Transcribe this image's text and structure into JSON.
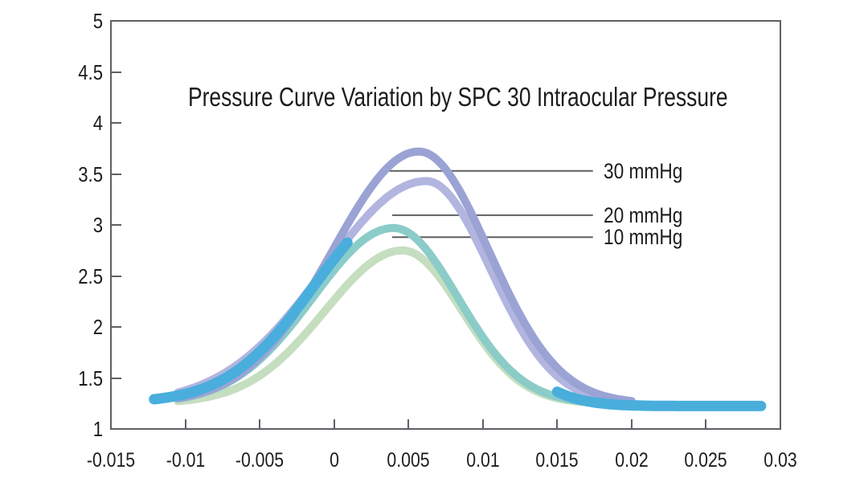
{
  "figure": {
    "background": "#ffffff",
    "frame_color": "#5d6165",
    "text_color": "#1d1d1d",
    "leader_line_color": "#5f5f5f"
  },
  "chart_data": {
    "type": "line",
    "title": "Pressure Curve Variation by SPC 30 Intraocular Pressure",
    "xlabel": "",
    "ylabel": "",
    "xlim": [
      -0.015,
      0.03
    ],
    "ylim": [
      1,
      5
    ],
    "grid": false,
    "x_ticks": [
      -0.015,
      -0.01,
      -0.005,
      0,
      0.005,
      0.01,
      0.015,
      0.02,
      0.025,
      0.03
    ],
    "x_tick_labels": [
      "-0.015",
      "-0.01",
      "-0.005",
      "0",
      "0.005",
      "0.01",
      "0.015",
      "0.02",
      "0.025",
      "0.03"
    ],
    "y_ticks": [
      5,
      4.5,
      4,
      3.5,
      3,
      2.5,
      2,
      1.5,
      1
    ],
    "y_tick_labels": [
      "5",
      "4.5",
      "4",
      "3.5",
      "3",
      "2.5",
      "2",
      "1.5",
      "1"
    ],
    "baseline_value": 1.25,
    "series": [
      {
        "name": "10 mmHg curve",
        "color": "#c5dec0",
        "stroke_width": 10,
        "base": 1.25,
        "amplitude": 1.5,
        "mu": 0.0046,
        "sigma_left": 0.0052,
        "sigma_right": 0.004,
        "x_start": -0.0105,
        "x_end": 0.0195,
        "peak": {
          "x": 0.0046,
          "y": 2.75
        }
      },
      {
        "name": "20 mmHg curve",
        "color": "#8bccc9",
        "stroke_width": 10,
        "base": 1.25,
        "amplitude": 1.72,
        "mu": 0.004,
        "sigma_left": 0.0054,
        "sigma_right": 0.0043,
        "x_start": -0.0105,
        "x_end": 0.0195,
        "peak": {
          "x": 0.004,
          "y": 2.97
        }
      },
      {
        "name": "30 mmHg secondary curve",
        "color": "#b2b5df",
        "stroke_width": 10,
        "base": 1.25,
        "amplitude": 2.18,
        "mu": 0.0062,
        "sigma_left": 0.0068,
        "sigma_right": 0.0043,
        "x_start": -0.0105,
        "x_end": 0.02,
        "peak": {
          "x": 0.0062,
          "y": 3.43
        }
      },
      {
        "name": "30 mmHg curve",
        "color": "#9aa3d4",
        "stroke_width": 10,
        "base": 1.25,
        "amplitude": 2.47,
        "mu": 0.0057,
        "sigma_left": 0.0058,
        "sigma_right": 0.0047,
        "x_start": -0.0105,
        "x_end": 0.02,
        "peak": {
          "x": 0.0057,
          "y": 3.72
        }
      },
      {
        "name": "base pressure curve (left flank)",
        "color": "#49aedc",
        "stroke_width": 13,
        "base": 1.26,
        "amplitude": 1.9,
        "mu": 0.0045,
        "sigma_left": 0.0058,
        "sigma_right": 0.0046,
        "x_start": -0.0121,
        "x_end": 0.0009,
        "peak": {
          "x": -0.0121,
          "y": 1.27
        }
      },
      {
        "name": "base pressure curve (right flank)",
        "color": "#49aedc",
        "stroke_width": 13,
        "base": 1.225,
        "amplitude": 1.9,
        "mu": 0.0045,
        "sigma_left": 0.0058,
        "sigma_right": 0.0046,
        "x_start": 0.015,
        "x_end": 0.0287,
        "peak": {
          "x": 0.0287,
          "y": 1.23
        }
      }
    ],
    "annotations": [
      {
        "label": "30 mmHg",
        "y": 3.53,
        "x1": 0.0034,
        "x2": 0.0174,
        "label_x": 0.0181
      },
      {
        "label": "20 mmHg",
        "y": 3.095,
        "x1": 0.0039,
        "x2": 0.0174,
        "label_x": 0.0181
      },
      {
        "label": "10 mmHg",
        "y": 2.88,
        "x1": 0.0039,
        "x2": 0.0174,
        "label_x": 0.0181
      }
    ],
    "legend_position": "right-inside"
  }
}
